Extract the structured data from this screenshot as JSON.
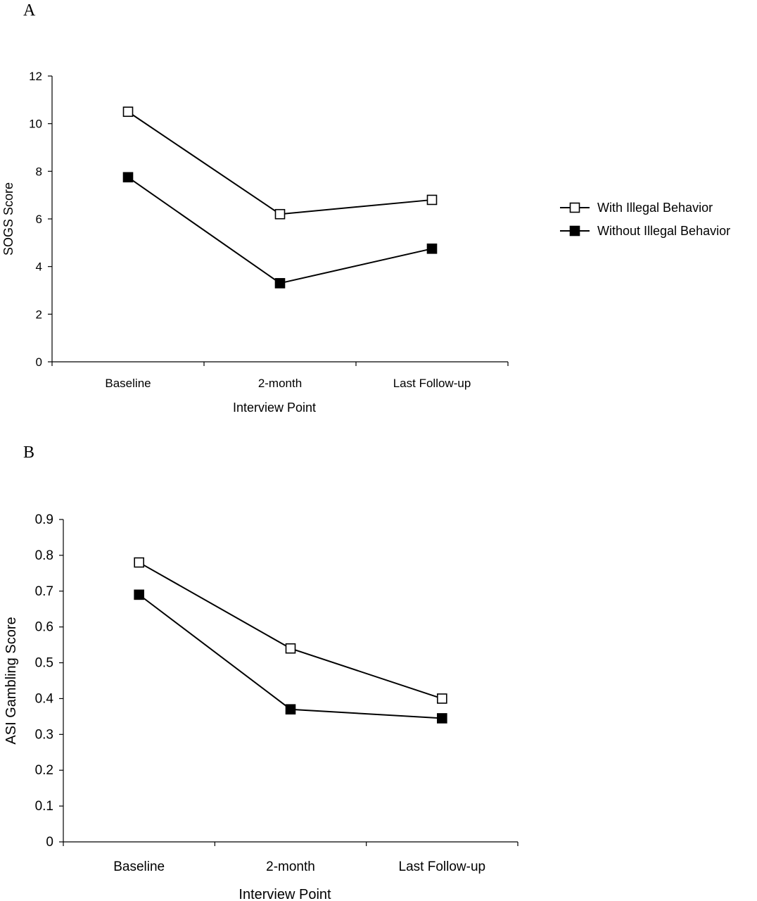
{
  "chart_data": [
    {
      "panel": "A",
      "type": "line",
      "title": "",
      "xlabel": "Interview Point",
      "ylabel": "SOGS Score",
      "categories": [
        "Baseline",
        "2-month",
        "Last Follow-up"
      ],
      "ylim": [
        0,
        12
      ],
      "yticks": [
        "0",
        "2",
        "4",
        "6",
        "8",
        "10",
        "12"
      ],
      "grid": false,
      "legend_position": "right",
      "series": [
        {
          "name": "With Illegal Behavior",
          "marker": "open-square",
          "values": [
            10.5,
            6.2,
            6.8
          ]
        },
        {
          "name": "Without Illegal Behavior",
          "marker": "filled-square",
          "values": [
            7.75,
            3.3,
            4.75
          ]
        }
      ]
    },
    {
      "panel": "B",
      "type": "line",
      "title": "",
      "xlabel": "Interview Point",
      "ylabel": "ASI Gambling Score",
      "categories": [
        "Baseline",
        "2-month",
        "Last Follow-up"
      ],
      "ylim": [
        0,
        0.9
      ],
      "yticks": [
        "0",
        "0.1",
        "0.2",
        "0.3",
        "0.4",
        "0.5",
        "0.6",
        "0.7",
        "0.8",
        "0.9"
      ],
      "grid": false,
      "series": [
        {
          "marker": "open-square",
          "values": [
            0.78,
            0.54,
            0.4
          ]
        },
        {
          "marker": "filled-square",
          "values": [
            0.69,
            0.37,
            0.345
          ]
        }
      ]
    }
  ]
}
